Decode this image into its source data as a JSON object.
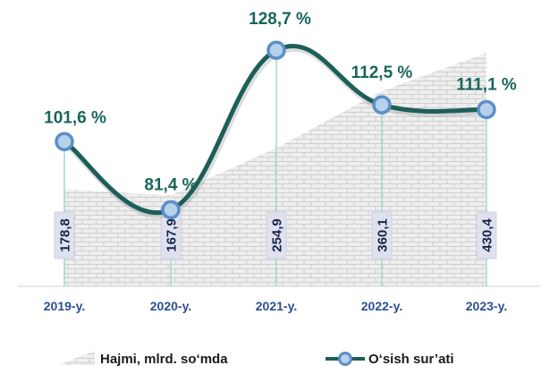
{
  "chart_data": {
    "type": "line+area",
    "categories": [
      "2019-y.",
      "2020-y.",
      "2021-y.",
      "2022-y.",
      "2023-y."
    ],
    "series": [
      {
        "name": "Hajmi, mlrd. so‘mda",
        "kind": "area",
        "values": [
          178.8,
          167.9,
          254.9,
          360.1,
          430.4
        ],
        "labels": [
          "178,8",
          "167,9",
          "254,9",
          "360,1",
          "430,4"
        ]
      },
      {
        "name": "O‘sish sur’ati",
        "kind": "line",
        "values": [
          101.6,
          81.4,
          128.7,
          112.5,
          111.1
        ],
        "labels": [
          "101,6 %",
          "81,4 %",
          "128,7 %",
          "112,5 %",
          "111,1 %"
        ]
      }
    ],
    "grid": false,
    "legend_position": "bottom",
    "colors": {
      "line": "#1e5e58",
      "marker_fill": "#b6d1ec",
      "marker_stroke": "#5c8fc7",
      "pct_label": "#17665b",
      "x_label": "#2e4e94",
      "area_fill": "#ececec",
      "area_pattern": "#c4c4c4",
      "drop_line": "#9fd9d6",
      "label_box": "#dfe1ee"
    }
  }
}
